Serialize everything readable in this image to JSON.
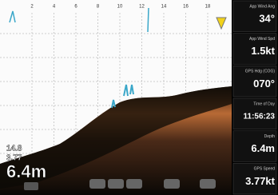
{
  "scale": {
    "ticks": [
      2,
      4,
      6,
      8,
      10,
      12,
      14,
      16,
      18
    ]
  },
  "overlay": {
    "temperature": "14.8",
    "speed": "3.77",
    "depth": "6.4m"
  },
  "panels": [
    {
      "label": "App Wind Ang",
      "value": "34°"
    },
    {
      "label": "App Wind Spd",
      "value": "1.5kt"
    },
    {
      "label": "GPS Hdg (COG)",
      "value": "070°"
    },
    {
      "label": "Time of Day",
      "value": "11:56:23"
    },
    {
      "label": "Depth",
      "value": "6.4m"
    },
    {
      "label": "GPS Speed",
      "value": "3.77kt"
    }
  ]
}
